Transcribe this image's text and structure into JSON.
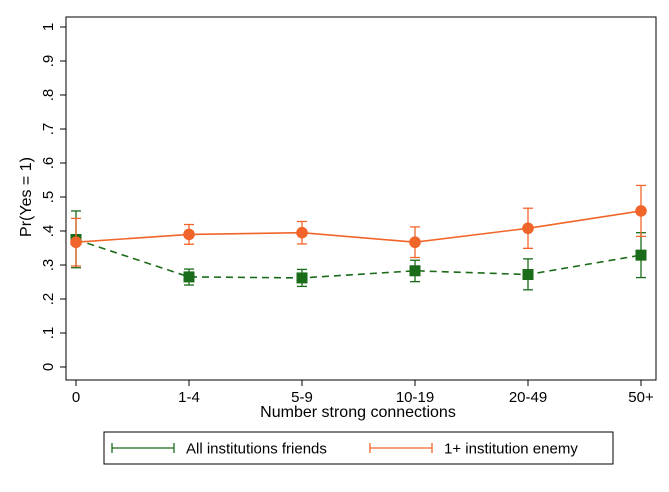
{
  "chart_data": {
    "type": "line",
    "title": "",
    "xlabel": "Number strong connections",
    "ylabel": "Pr(Yes = 1)",
    "categories": [
      "0",
      "1-4",
      "5-9",
      "10-19",
      "20-49",
      "50+"
    ],
    "ylim": [
      0,
      1
    ],
    "yticks": [
      0,
      0.1,
      0.2,
      0.3,
      0.4,
      0.5,
      0.6,
      0.7,
      0.8,
      0.9,
      1
    ],
    "ytick_labels": [
      "0",
      ".1",
      ".2",
      ".3",
      ".4",
      ".5",
      ".6",
      ".7",
      ".8",
      ".9",
      "1"
    ],
    "grid": false,
    "legend_position": "bottom",
    "series": [
      {
        "name": "All institutions friends",
        "color": "#1a6b1a",
        "marker": "square",
        "line_style": "dashed",
        "values": [
          0.375,
          0.265,
          0.262,
          0.283,
          0.272,
          0.329
        ],
        "ci_low": [
          0.292,
          0.241,
          0.237,
          0.251,
          0.227,
          0.263
        ],
        "ci_high": [
          0.459,
          0.288,
          0.287,
          0.314,
          0.318,
          0.395
        ]
      },
      {
        "name": "1+ institution enemy",
        "color": "#f2652a",
        "marker": "circle",
        "line_style": "solid",
        "values": [
          0.367,
          0.39,
          0.395,
          0.367,
          0.408,
          0.459
        ],
        "ci_low": [
          0.297,
          0.361,
          0.362,
          0.322,
          0.349,
          0.384
        ],
        "ci_high": [
          0.437,
          0.419,
          0.428,
          0.412,
          0.467,
          0.534
        ]
      }
    ]
  }
}
